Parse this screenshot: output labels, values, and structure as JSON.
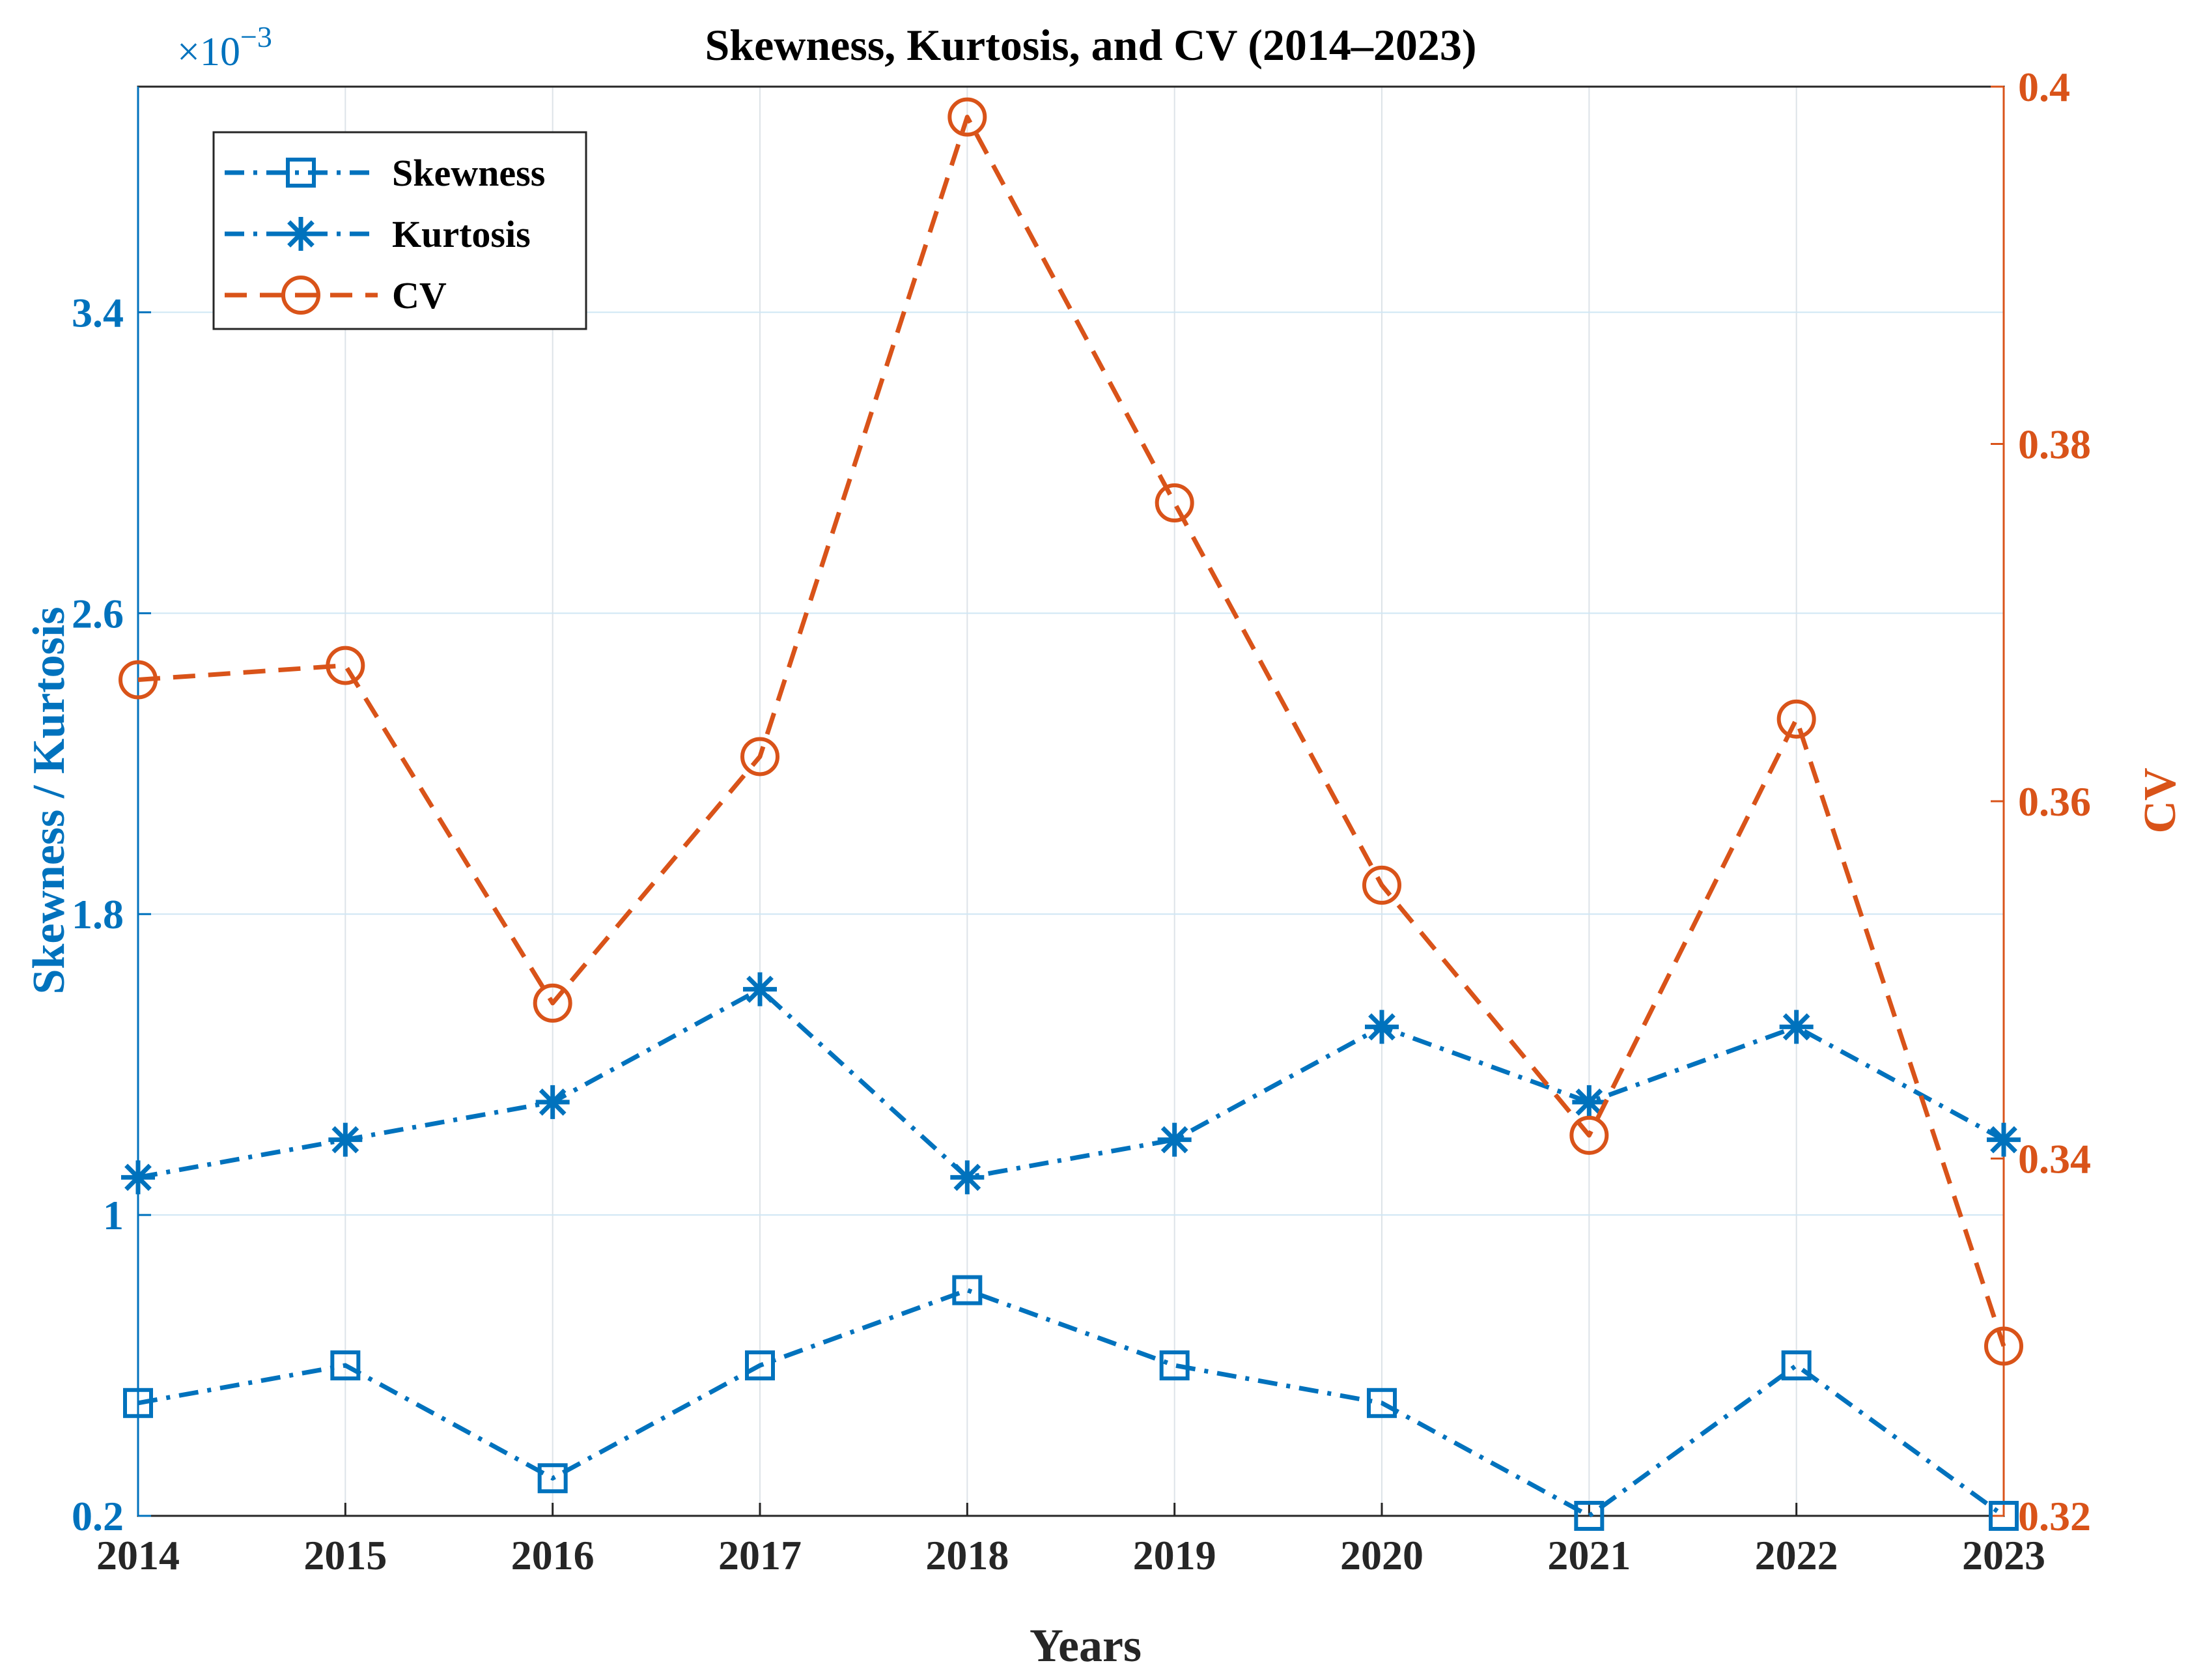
{
  "chart_data": {
    "type": "line",
    "title": "Skewness, Kurtosis, and CV (2014–2023)",
    "xlabel": "Years",
    "ylabel_left": "Skewness / Kurtosis",
    "ylabel_right": "CV",
    "left_axis_exponent": "×10",
    "left_axis_exponent_power": "−3",
    "x": [
      2014,
      2015,
      2016,
      2017,
      2018,
      2019,
      2020,
      2021,
      2022,
      2023
    ],
    "x_tick_labels": [
      "2014",
      "2015",
      "2016",
      "2017",
      "2018",
      "2019",
      "2020",
      "2021",
      "2022",
      "2023"
    ],
    "ylim_left": [
      0.2,
      4.0
    ],
    "yticks_left": [
      0.2,
      1.0,
      1.8,
      2.6,
      3.4
    ],
    "ytick_labels_left": [
      "0.2",
      "1",
      "1.8",
      "2.6",
      "3.4"
    ],
    "ylim_right": [
      0.32,
      0.4
    ],
    "yticks_right": [
      0.32,
      0.34,
      0.36,
      0.38,
      0.4
    ],
    "ytick_labels_right": [
      "0.32",
      "0.34",
      "0.36",
      "0.38",
      "0.4"
    ],
    "grid": true,
    "legend_position": "top-left",
    "series": [
      {
        "name": "Skewness",
        "axis": "left",
        "color": "#0072BD",
        "marker": "square",
        "linestyle": "dash-dot",
        "values": [
          0.5,
          0.6,
          0.3,
          0.6,
          0.8,
          0.6,
          0.5,
          0.2,
          0.6,
          0.2
        ]
      },
      {
        "name": "Kurtosis",
        "axis": "left",
        "color": "#0072BD",
        "marker": "asterisk",
        "linestyle": "dash-dot",
        "values": [
          1.1,
          1.2,
          1.3,
          1.6,
          1.1,
          1.2,
          1.5,
          1.3,
          1.5,
          1.2
        ]
      },
      {
        "name": "CV",
        "axis": "right",
        "color": "#D95319",
        "marker": "circle",
        "linestyle": "dashed",
        "values": [
          0.3668,
          0.3676,
          0.3487,
          0.3625,
          0.3983,
          0.3767,
          0.3553,
          0.3413,
          0.3646,
          0.3295
        ]
      }
    ]
  }
}
